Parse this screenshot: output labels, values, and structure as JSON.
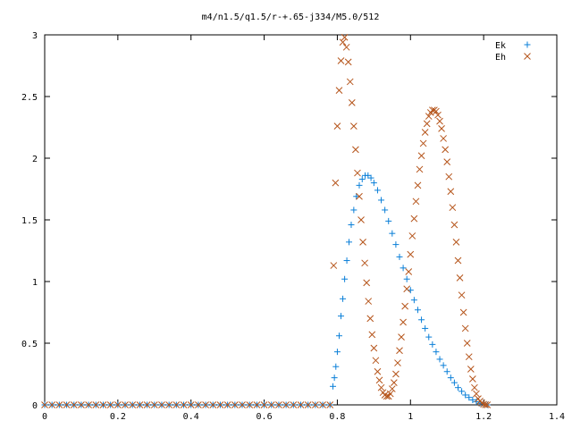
{
  "chart_data": {
    "type": "scatter",
    "title": "m4/n1.5/q1.5/r-+.65-j334/M5.0/512",
    "xlabel": "",
    "ylabel": "",
    "xlim": [
      0,
      1.4
    ],
    "ylim": [
      0,
      3
    ],
    "grid": false,
    "legend_position": "top-right",
    "x_ticks": [
      "0",
      "0.2",
      "0.4",
      "0.6",
      "0.8",
      "1",
      "1.2",
      "1.4"
    ],
    "y_ticks": [
      "0",
      "0.5",
      "1",
      "1.5",
      "2",
      "2.5",
      "3"
    ],
    "series": [
      {
        "name": "Ek",
        "marker": "plus",
        "color": "#0a7fd8",
        "points": [
          [
            0.0,
            0
          ],
          [
            0.02,
            0
          ],
          [
            0.04,
            0
          ],
          [
            0.06,
            0
          ],
          [
            0.08,
            0
          ],
          [
            0.1,
            0
          ],
          [
            0.12,
            0
          ],
          [
            0.14,
            0
          ],
          [
            0.16,
            0
          ],
          [
            0.18,
            0
          ],
          [
            0.2,
            0
          ],
          [
            0.22,
            0
          ],
          [
            0.24,
            0
          ],
          [
            0.26,
            0
          ],
          [
            0.28,
            0
          ],
          [
            0.3,
            0
          ],
          [
            0.32,
            0
          ],
          [
            0.34,
            0
          ],
          [
            0.36,
            0
          ],
          [
            0.38,
            0
          ],
          [
            0.4,
            0
          ],
          [
            0.42,
            0
          ],
          [
            0.44,
            0
          ],
          [
            0.46,
            0
          ],
          [
            0.48,
            0
          ],
          [
            0.5,
            0
          ],
          [
            0.52,
            0
          ],
          [
            0.54,
            0
          ],
          [
            0.56,
            0
          ],
          [
            0.58,
            0
          ],
          [
            0.6,
            0
          ],
          [
            0.62,
            0
          ],
          [
            0.64,
            0
          ],
          [
            0.66,
            0
          ],
          [
            0.68,
            0
          ],
          [
            0.7,
            0
          ],
          [
            0.72,
            0
          ],
          [
            0.74,
            0
          ],
          [
            0.76,
            0
          ],
          [
            0.78,
            0
          ],
          [
            0.788,
            0.15
          ],
          [
            0.792,
            0.22
          ],
          [
            0.796,
            0.31
          ],
          [
            0.8,
            0.43
          ],
          [
            0.805,
            0.56
          ],
          [
            0.81,
            0.72
          ],
          [
            0.815,
            0.86
          ],
          [
            0.82,
            1.02
          ],
          [
            0.826,
            1.17
          ],
          [
            0.832,
            1.32
          ],
          [
            0.838,
            1.46
          ],
          [
            0.845,
            1.58
          ],
          [
            0.852,
            1.69
          ],
          [
            0.86,
            1.78
          ],
          [
            0.868,
            1.83
          ],
          [
            0.876,
            1.86
          ],
          [
            0.884,
            1.86
          ],
          [
            0.892,
            1.84
          ],
          [
            0.9,
            1.8
          ],
          [
            0.91,
            1.74
          ],
          [
            0.92,
            1.66
          ],
          [
            0.93,
            1.58
          ],
          [
            0.94,
            1.49
          ],
          [
            0.95,
            1.39
          ],
          [
            0.96,
            1.3
          ],
          [
            0.97,
            1.2
          ],
          [
            0.98,
            1.11
          ],
          [
            0.99,
            1.02
          ],
          [
            1.0,
            0.93
          ],
          [
            1.01,
            0.85
          ],
          [
            1.02,
            0.77
          ],
          [
            1.03,
            0.69
          ],
          [
            1.04,
            0.62
          ],
          [
            1.05,
            0.55
          ],
          [
            1.06,
            0.49
          ],
          [
            1.07,
            0.43
          ],
          [
            1.08,
            0.37
          ],
          [
            1.09,
            0.32
          ],
          [
            1.1,
            0.27
          ],
          [
            1.11,
            0.22
          ],
          [
            1.12,
            0.18
          ],
          [
            1.13,
            0.14
          ],
          [
            1.14,
            0.11
          ],
          [
            1.15,
            0.08
          ],
          [
            1.16,
            0.06
          ],
          [
            1.17,
            0.04
          ],
          [
            1.18,
            0.025
          ],
          [
            1.19,
            0.012
          ],
          [
            1.2,
            0.005
          ],
          [
            1.21,
            0
          ]
        ]
      },
      {
        "name": "Eh",
        "marker": "cross",
        "color": "#b5541a",
        "points": [
          [
            0.0,
            0
          ],
          [
            0.02,
            0
          ],
          [
            0.04,
            0
          ],
          [
            0.06,
            0
          ],
          [
            0.08,
            0
          ],
          [
            0.1,
            0
          ],
          [
            0.12,
            0
          ],
          [
            0.14,
            0
          ],
          [
            0.16,
            0
          ],
          [
            0.18,
            0
          ],
          [
            0.2,
            0
          ],
          [
            0.22,
            0
          ],
          [
            0.24,
            0
          ],
          [
            0.26,
            0
          ],
          [
            0.28,
            0
          ],
          [
            0.3,
            0
          ],
          [
            0.32,
            0
          ],
          [
            0.34,
            0
          ],
          [
            0.36,
            0
          ],
          [
            0.38,
            0
          ],
          [
            0.4,
            0
          ],
          [
            0.42,
            0
          ],
          [
            0.44,
            0
          ],
          [
            0.46,
            0
          ],
          [
            0.48,
            0
          ],
          [
            0.5,
            0
          ],
          [
            0.52,
            0
          ],
          [
            0.54,
            0
          ],
          [
            0.56,
            0
          ],
          [
            0.58,
            0
          ],
          [
            0.6,
            0
          ],
          [
            0.62,
            0
          ],
          [
            0.64,
            0
          ],
          [
            0.66,
            0
          ],
          [
            0.68,
            0
          ],
          [
            0.7,
            0
          ],
          [
            0.72,
            0
          ],
          [
            0.74,
            0
          ],
          [
            0.76,
            0
          ],
          [
            0.78,
            0
          ],
          [
            0.79,
            1.13
          ],
          [
            0.795,
            1.8
          ],
          [
            0.8,
            2.26
          ],
          [
            0.805,
            2.55
          ],
          [
            0.81,
            2.79
          ],
          [
            0.815,
            2.94
          ],
          [
            0.82,
            2.98
          ],
          [
            0.825,
            2.9
          ],
          [
            0.83,
            2.78
          ],
          [
            0.835,
            2.62
          ],
          [
            0.84,
            2.45
          ],
          [
            0.845,
            2.26
          ],
          [
            0.85,
            2.07
          ],
          [
            0.855,
            1.88
          ],
          [
            0.86,
            1.69
          ],
          [
            0.865,
            1.5
          ],
          [
            0.87,
            1.32
          ],
          [
            0.875,
            1.15
          ],
          [
            0.88,
            0.99
          ],
          [
            0.885,
            0.84
          ],
          [
            0.89,
            0.7
          ],
          [
            0.895,
            0.57
          ],
          [
            0.9,
            0.46
          ],
          [
            0.905,
            0.36
          ],
          [
            0.91,
            0.27
          ],
          [
            0.915,
            0.2
          ],
          [
            0.92,
            0.14
          ],
          [
            0.925,
            0.1
          ],
          [
            0.93,
            0.08
          ],
          [
            0.935,
            0.07
          ],
          [
            0.94,
            0.07
          ],
          [
            0.945,
            0.09
          ],
          [
            0.95,
            0.13
          ],
          [
            0.955,
            0.18
          ],
          [
            0.96,
            0.25
          ],
          [
            0.965,
            0.34
          ],
          [
            0.97,
            0.44
          ],
          [
            0.975,
            0.55
          ],
          [
            0.98,
            0.67
          ],
          [
            0.985,
            0.8
          ],
          [
            0.99,
            0.94
          ],
          [
            0.995,
            1.08
          ],
          [
            1.0,
            1.22
          ],
          [
            1.005,
            1.37
          ],
          [
            1.01,
            1.51
          ],
          [
            1.015,
            1.65
          ],
          [
            1.02,
            1.78
          ],
          [
            1.025,
            1.91
          ],
          [
            1.03,
            2.02
          ],
          [
            1.035,
            2.12
          ],
          [
            1.04,
            2.21
          ],
          [
            1.045,
            2.28
          ],
          [
            1.05,
            2.34
          ],
          [
            1.055,
            2.37
          ],
          [
            1.06,
            2.39
          ],
          [
            1.065,
            2.39
          ],
          [
            1.07,
            2.38
          ],
          [
            1.075,
            2.35
          ],
          [
            1.08,
            2.3
          ],
          [
            1.085,
            2.24
          ],
          [
            1.09,
            2.16
          ],
          [
            1.095,
            2.07
          ],
          [
            1.1,
            1.97
          ],
          [
            1.105,
            1.85
          ],
          [
            1.11,
            1.73
          ],
          [
            1.115,
            1.6
          ],
          [
            1.12,
            1.46
          ],
          [
            1.125,
            1.32
          ],
          [
            1.13,
            1.17
          ],
          [
            1.135,
            1.03
          ],
          [
            1.14,
            0.89
          ],
          [
            1.145,
            0.75
          ],
          [
            1.15,
            0.62
          ],
          [
            1.155,
            0.5
          ],
          [
            1.16,
            0.39
          ],
          [
            1.165,
            0.29
          ],
          [
            1.17,
            0.21
          ],
          [
            1.175,
            0.14
          ],
          [
            1.18,
            0.09
          ],
          [
            1.185,
            0.05
          ],
          [
            1.19,
            0.03
          ],
          [
            1.195,
            0.015
          ],
          [
            1.2,
            0.005
          ],
          [
            1.205,
            0.001
          ],
          [
            1.21,
            0
          ]
        ]
      }
    ]
  }
}
